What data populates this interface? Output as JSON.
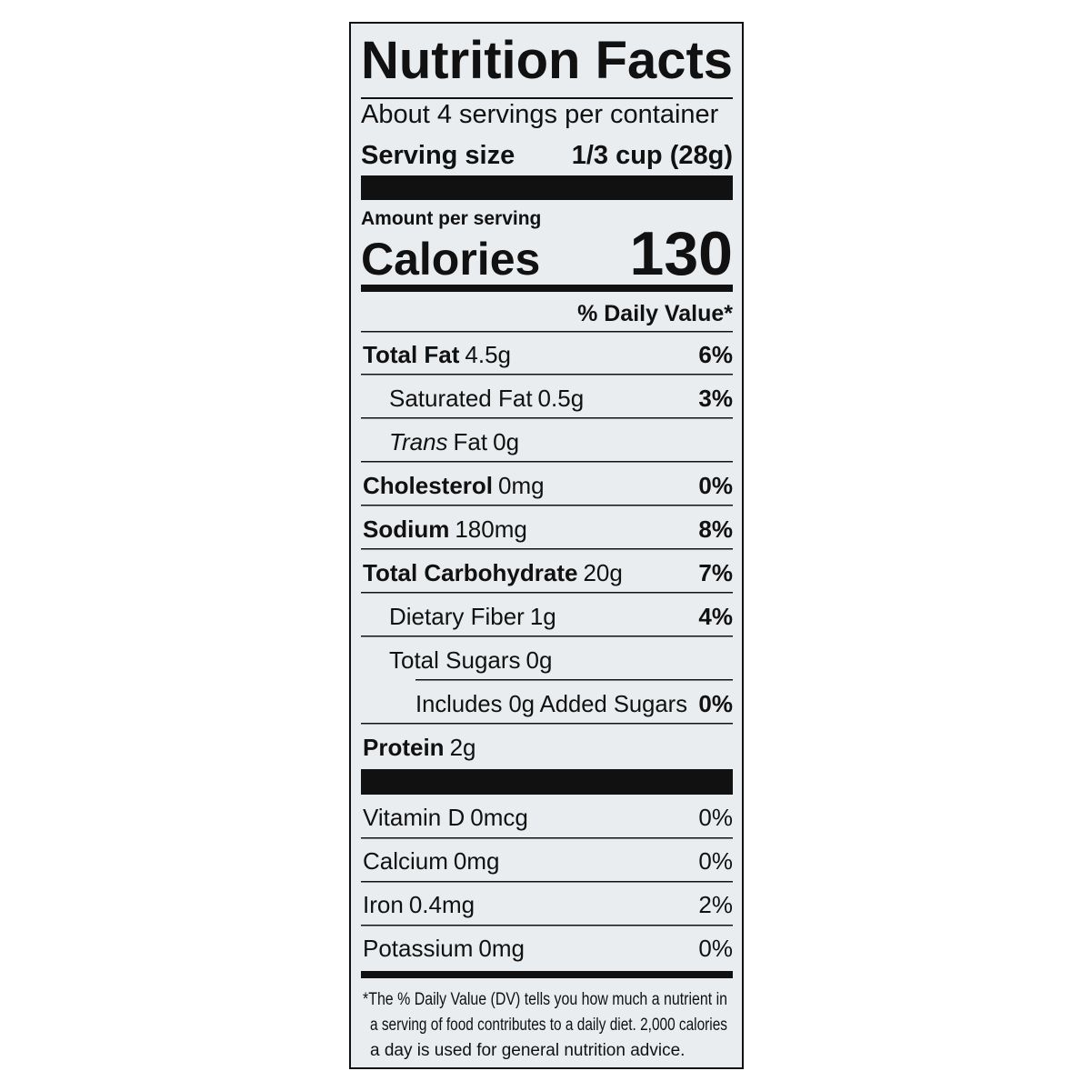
{
  "header": {
    "title": "Nutrition Facts",
    "servings": "About 4 servings per container",
    "serving_size_label": "Serving size",
    "serving_size": "1/3 cup (28g)"
  },
  "calories": {
    "label": "Amount per serving",
    "name": "Calories",
    "value": "130"
  },
  "dv_header": "% Daily Value*",
  "nutrients": [
    {
      "name": "Total Fat",
      "amount": "4.5g",
      "dv": "6%",
      "level": 0
    },
    {
      "name": "Saturated Fat",
      "amount": "0.5g",
      "dv": "3%",
      "level": 1
    },
    {
      "italic": "Trans",
      "name": "Fat",
      "amount": "0g",
      "level": 1
    },
    {
      "name": "Cholesterol",
      "amount": "0mg",
      "dv": "0%",
      "level": 0
    },
    {
      "name": "Sodium",
      "amount": "180mg",
      "dv": "8%",
      "level": 0
    },
    {
      "name": "Total Carbohydrate",
      "amount": "20g",
      "dv": "7%",
      "level": 0
    },
    {
      "name": "Dietary Fiber",
      "amount": "1g",
      "dv": "4%",
      "level": 1
    },
    {
      "name": "Total Sugars",
      "amount": "0g",
      "level": 1
    },
    {
      "name": "Includes 0g Added Sugars",
      "dv": "0%",
      "level": 2
    },
    {
      "name": "Protein",
      "amount": "2g",
      "level": 0
    }
  ],
  "vitamins": [
    {
      "name": "Vitamin D",
      "amount": "0mcg",
      "dv": "0%"
    },
    {
      "name": "Calcium",
      "amount": "0mg",
      "dv": "0%"
    },
    {
      "name": "Iron",
      "amount": "0.4mg",
      "dv": "2%"
    },
    {
      "name": "Potassium",
      "amount": "0mg",
      "dv": "0%"
    }
  ],
  "footnote": [
    "*The % Daily Value (DV) tells you how much a nutrient in",
    "a serving of food contributes to a daily diet. 2,000 calories",
    "a day is used for general nutrition advice."
  ]
}
